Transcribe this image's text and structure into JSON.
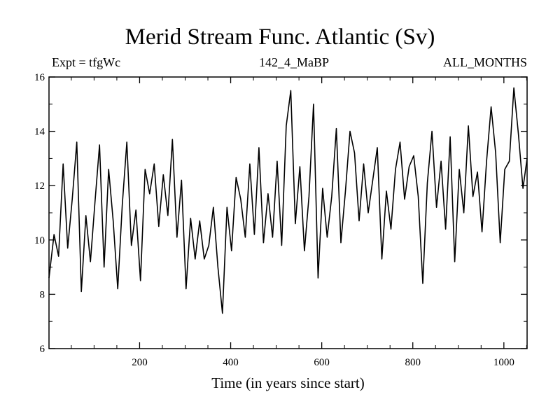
{
  "header": {
    "title": "Merid Stream Func. Atlantic (Sv)",
    "left": "Expt = tfgWc",
    "center": "142_4_MaBP",
    "right": "ALL_MONTHS"
  },
  "chart_data": {
    "type": "line",
    "title": "Merid Stream Func. Atlantic (Sv)",
    "xlabel": "Time (in years since start)",
    "ylabel": "",
    "xlim": [
      1,
      1051
    ],
    "ylim": [
      6,
      16
    ],
    "x_ticks": [
      200,
      400,
      600,
      800,
      1000
    ],
    "y_ticks": [
      6,
      8,
      10,
      12,
      14,
      16
    ],
    "x_tick_labels": [
      "200",
      "400",
      "600",
      "800",
      "1000"
    ],
    "y_tick_labels": [
      "6",
      "8",
      "10",
      "12",
      "14",
      "16"
    ],
    "grid": false,
    "series": [
      {
        "x": [
          1,
          12,
          22,
          32,
          42,
          52,
          62,
          72,
          82,
          92,
          102,
          112,
          122,
          132,
          142,
          152,
          162,
          172,
          182,
          192,
          202,
          212,
          222,
          232,
          242,
          252,
          262,
          272,
          282,
          292,
          302,
          312,
          322,
          332,
          342,
          352,
          362,
          372,
          382,
          392,
          402,
          412,
          422,
          432,
          442,
          452,
          462,
          472,
          482,
          492,
          502,
          512,
          522,
          532,
          542,
          552,
          562,
          572,
          582,
          592,
          602,
          612,
          622,
          632,
          642,
          652,
          662,
          672,
          682,
          692,
          702,
          712,
          722,
          732,
          742,
          752,
          762,
          772,
          782,
          792,
          802,
          812,
          822,
          832,
          842,
          852,
          862,
          872,
          882,
          892,
          902,
          912,
          922,
          932,
          942,
          952,
          962,
          972,
          982,
          992,
          1002,
          1012,
          1022,
          1032,
          1042,
          1051
        ],
        "y": [
          8.6,
          10.2,
          9.4,
          12.8,
          9.7,
          11.5,
          13.6,
          8.1,
          10.9,
          9.2,
          11.4,
          13.5,
          9.0,
          12.6,
          10.7,
          8.2,
          11.3,
          13.6,
          9.8,
          11.1,
          8.5,
          12.6,
          11.7,
          12.8,
          10.5,
          12.4,
          10.9,
          13.7,
          10.1,
          12.2,
          8.2,
          10.8,
          9.3,
          10.7,
          9.3,
          9.8,
          11.2,
          9.0,
          7.3,
          11.2,
          9.6,
          12.3,
          11.5,
          10.1,
          12.8,
          10.2,
          13.4,
          9.9,
          11.7,
          10.1,
          12.9,
          9.8,
          14.2,
          15.5,
          10.6,
          12.7,
          9.6,
          11.6,
          15.0,
          8.6,
          11.9,
          10.1,
          11.6,
          14.1,
          9.9,
          11.8,
          14.0,
          13.2,
          10.7,
          12.8,
          11.0,
          12.2,
          13.4,
          9.3,
          11.8,
          10.4,
          12.6,
          13.6,
          11.5,
          12.7,
          13.1,
          11.6,
          8.4,
          12.1,
          14.0,
          11.2,
          12.9,
          10.4,
          13.8,
          9.2,
          12.6,
          11.0,
          14.2,
          11.6,
          12.5,
          10.3,
          12.9,
          14.9,
          13.2,
          9.9,
          12.6,
          12.9,
          15.6,
          13.9,
          11.9,
          13.0
        ]
      }
    ]
  }
}
